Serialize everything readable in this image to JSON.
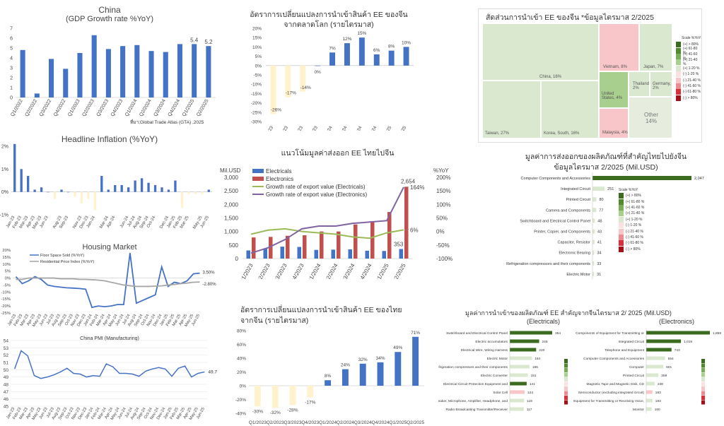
{
  "gdp": {
    "title": "China",
    "subtitle": "(GDP Growth rate %YoY)",
    "chart_data": {
      "type": "bar",
      "categories": [
        "Q1/2022",
        "Q2/2022",
        "Q3/2022",
        "Q4/2022",
        "Q1/2023",
        "Q2/2023",
        "Q3/2023",
        "Q4/2023",
        "Q1/2024",
        "Q2/2024",
        "Q3/2024",
        "Q4/2024",
        "Q1/2025",
        "Q2/2025"
      ],
      "values": [
        4.8,
        0.4,
        3.9,
        2.9,
        4.5,
        6.3,
        4.9,
        5.2,
        5.3,
        4.7,
        4.6,
        5.4,
        5.4,
        5.2
      ],
      "data_labels": [
        "",
        "",
        "",
        "",
        "",
        "",
        "",
        "",
        "",
        "",
        "",
        "",
        "5.4",
        "5.2"
      ],
      "ylim": [
        0,
        7
      ],
      "yticks": [
        "0",
        "1",
        "2",
        "3",
        "4",
        "5",
        "6",
        "7"
      ],
      "color": "#4472c4"
    }
  },
  "import_world": {
    "title_line1": "อัตราการเปลี่ยนแปลงการนำเข้าสินค้า EE ของจีน",
    "title_line2": "จากตลาดโลก (รายไตรมาส)",
    "source": "ที่มา;Global Trade Atlas (GTA) ,2025",
    "chart_data": {
      "type": "bar",
      "categories": [
        "Q1/2023",
        "Q2/2023",
        "Q3/2023",
        "Q4/2023",
        "Q1/2024",
        "Q2/2024",
        "Q3/2024",
        "Q4/2024",
        "Q1/2025",
        "Q2/2025"
      ],
      "values": [
        -26,
        -17,
        -14,
        0,
        7,
        12,
        15,
        6,
        8,
        10
      ],
      "data_labels": [
        "-26%",
        "-17%",
        "-14%",
        "0%",
        "7%",
        "12%",
        "15%",
        "6%",
        "8%",
        "10%"
      ],
      "ylim": [
        -30,
        20
      ],
      "yticks": [
        "-30%",
        "-25%",
        "-20%",
        "-15%",
        "-10%",
        "-5%",
        "0%",
        "5%",
        "10%",
        "15%",
        "20%"
      ],
      "pos_color": "#4472c4",
      "neg_color": "#fff2cc"
    }
  },
  "treemap": {
    "title": "สัดส่วนการนำเข้า EE ของจีน *ข้อมูลไตรมาส 2/2025",
    "cells": [
      {
        "label": "China, 16%",
        "color": "#dae8d0"
      },
      {
        "label": "Taiwan, 27%",
        "color": "#dae8d0"
      },
      {
        "label": "Korea, South, 16%",
        "color": "#dae8d0"
      },
      {
        "label": "Vietnam, 8%",
        "color": "#f8c6c9"
      },
      {
        "label": "Japan, 7%",
        "color": "#dae8d0"
      },
      {
        "label": "United States, 4%",
        "color": "#a9cf8e"
      },
      {
        "label": "Thailand, 2%",
        "color": "#dae8d0"
      },
      {
        "label": "Germany, 2%",
        "color": "#dae8d0"
      },
      {
        "label": "Malaysia, 4%",
        "color": "#f8c6c9"
      },
      {
        "label": "Other 14%",
        "color": "#e6eddf"
      }
    ],
    "scale_title": "Scale %YoY",
    "scale": [
      {
        "label": "(+) > 80%",
        "color": "#3a6b1f"
      },
      {
        "label": "(+) 61-80 %",
        "color": "#4f8a2c"
      },
      {
        "label": "(+) 41-60 %",
        "color": "#79ad5a"
      },
      {
        "label": "(+) 21-40 %",
        "color": "#a9cf8e"
      },
      {
        "label": "(+) 1-20 %",
        "color": "#dae8d0"
      },
      {
        "label": "(-) 1-20 %",
        "color": "#fde0e2"
      },
      {
        "label": "(-) 21-40 %",
        "color": "#f8c6c9"
      },
      {
        "label": "(-) 41-60 %",
        "color": "#ee8b90"
      },
      {
        "label": "(-) 61-80 %",
        "color": "#d9313b"
      },
      {
        "label": "(-) > 80%",
        "color": "#a50f15"
      }
    ]
  },
  "inflation": {
    "title": "Headline Inflation (%YoY)",
    "chart_data": {
      "type": "bar",
      "categories": [
        "Jan-23",
        "Feb-23",
        "Mar-23",
        "Apr-23",
        "May-23",
        "Jun-23",
        "Jul-23",
        "Aug-23",
        "Sep-23",
        "Oct-23",
        "Nov-23",
        "Dec-23",
        "Jan-24",
        "Feb-24",
        "Mar-24",
        "Apr-24",
        "May-24",
        "Jun-24",
        "Jul-24",
        "Aug-24",
        "Sep-24",
        "Oct-24",
        "Nov-24",
        "Dec-24",
        "Jan-25",
        "Feb-25",
        "Mar-25",
        "Apr-25",
        "May-25",
        "Jun-25"
      ],
      "values": [
        2.1,
        1.0,
        0.7,
        0.1,
        0.2,
        0.0,
        -0.3,
        0.1,
        0.0,
        -0.2,
        -0.5,
        -0.3,
        -0.8,
        0.7,
        0.1,
        0.3,
        0.3,
        0.2,
        0.5,
        0.6,
        0.4,
        0.3,
        0.2,
        0.1,
        0.5,
        -0.7,
        -0.1,
        -0.1,
        -0.1,
        0.1
      ],
      "xtick_labels": [
        "Jan-23",
        "Feb-23",
        "Mar-23",
        "Apr-23",
        "May-23",
        "Jun-23",
        "",
        "Aug-23",
        "Sep-23",
        "",
        "Nov-23",
        "Dec-23",
        "Jan-24",
        "",
        "Mar-24",
        "Apr-24",
        "",
        "Jun-24",
        "Jul-24",
        "Aug-24",
        "Sep-24",
        "Oct-24",
        "",
        "Dec-24",
        "Jan-25",
        "Feb-25",
        "Mar-25",
        "",
        "May-25",
        "Jun-25"
      ],
      "ylim": [
        -1,
        2
      ],
      "yticks": [
        "-1%",
        "0%",
        "1%",
        "2%"
      ],
      "pos_color": "#4472c4",
      "neg_color": "#fff2cc"
    }
  },
  "export_trend": {
    "title": "แนวโน้มมูลค่าส่งออก EE ไทยไปจีน",
    "left_unit": "Mil.USD",
    "right_unit": "%YoY",
    "chart_data": {
      "type": "bar",
      "categories": [
        "Q1/2023",
        "Q2/2023",
        "Q3/2023",
        "Q4/2023",
        "Q1/2024",
        "Q2/2024",
        "Q3/2024",
        "Q4/2024",
        "Q1/2025",
        "Q2/2025"
      ],
      "series": [
        {
          "name": "Electricals",
          "values": [
            300,
            380,
            440,
            430,
            320,
            330,
            340,
            290,
            280,
            353
          ],
          "color": "#4472c4"
        },
        {
          "name": "Electronics",
          "values": [
            780,
            800,
            840,
            860,
            1000,
            1000,
            1260,
            1350,
            1720,
            2654
          ],
          "color": "#c0504d"
        },
        {
          "name": "Growth rate of export value (Electricals)",
          "values": [
            -10,
            5,
            10,
            0,
            -5,
            -10,
            -20,
            -25,
            -5,
            6
          ],
          "color": "#9bbb59"
        },
        {
          "name": "Growth rate of export value (Electronics)",
          "values": [
            -80,
            -60,
            -30,
            10,
            20,
            20,
            30,
            35,
            40,
            164
          ],
          "color": "#8064a2"
        }
      ],
      "data_labels": [
        "2,654",
        "353",
        "164%",
        "6%"
      ],
      "ylim": [
        0,
        3000
      ],
      "yticks": [
        "0",
        "500",
        "1,000",
        "1,500",
        "2,000",
        "2,500",
        "3,000"
      ],
      "y2lim": [
        -100,
        200
      ],
      "y2ticks": [
        "-100%",
        "-50%",
        "0%",
        "50%",
        "100%",
        "150%",
        "200%"
      ]
    }
  },
  "export_products": {
    "title_line1": "มูลค่าการส่งออกของผลิตภัณฑ์ที่สำคัญไทยไปยังจีน",
    "title_line2": "ข้อมูลไตรมาส 2/2025 (Mil.USD)",
    "chart_data": {
      "type": "bar",
      "categories": [
        "Computer Components and Accessories",
        "Integrated Circuit",
        "Printed Circuit",
        "Camera and Components",
        "Switchboard and Electrical Control Panel",
        "Printer, Copier, and Components",
        "Capacitor, Resistor",
        "Electronic Bearing",
        "Refrigeration compressors and their components",
        "Electric Motor"
      ],
      "values": [
        2047,
        251,
        80,
        77,
        48,
        43,
        41,
        34,
        33,
        31
      ],
      "data_labels": [
        "2,047",
        "251",
        "80",
        "77",
        "48",
        "43",
        "41",
        "34",
        "33",
        "31"
      ],
      "colors": [
        "#3a6b1f",
        "#dae8d0",
        "#dae8d0",
        "#dae8d0",
        "#dae8d0",
        "#dae8d0",
        "#dae8d0",
        "#dae8d0",
        "#dae8d0",
        "#dae8d0"
      ]
    },
    "scale_title": "Scale %YoY"
  },
  "housing": {
    "title": "Housing Market",
    "chart_data": {
      "type": "line",
      "x": [
        "Jan-23",
        "Feb-23",
        "Mar-23",
        "Apr-23",
        "May-23",
        "Jun-23",
        "Jul-23",
        "Aug-23",
        "Sep-23",
        "Oct-23",
        "Nov-23",
        "Dec-23",
        "Jan-24",
        "Feb-24",
        "Mar-24",
        "Apr-24",
        "May-24",
        "Jun-24",
        "Jul-24",
        "Aug-24",
        "Sep-24",
        "Oct-24",
        "Nov-24",
        "Dec-24",
        "Jan-25",
        "Feb-25",
        "Mar-25",
        "Apr-25",
        "May-25",
        "Jun-25"
      ],
      "series": [
        {
          "name": "Floor Space Sold (%YoY)",
          "values": [
            1,
            -4,
            -2,
            1,
            -1,
            -5,
            -6,
            -6.5,
            -7,
            -7.2,
            -7.5,
            -8,
            -21,
            -20,
            -20.5,
            -20,
            -19,
            -19,
            18,
            -18,
            -16,
            -14,
            -12,
            8,
            -6,
            -3,
            -4,
            -2,
            3,
            3.5
          ],
          "color": "#4472c4"
        },
        {
          "name": "Residential Price Index (%YoY)",
          "values": [
            -1,
            -1,
            0,
            0,
            0,
            0,
            0,
            -0.5,
            -0.5,
            -0.5,
            -1,
            -1,
            -1.2,
            -1.5,
            -2,
            -3,
            -4,
            -5,
            -5.5,
            -6,
            -6,
            -6,
            -5.8,
            -5.6,
            -5,
            -4.6,
            -4,
            -3.6,
            -3,
            -2.8
          ],
          "color": "#a6a6a6"
        }
      ],
      "data_labels": [
        "3.50%",
        "-2.80%"
      ],
      "ylim": [
        -25,
        20
      ],
      "yticks": [
        "-25%",
        "-20%",
        "-15%",
        "-10%",
        "-5%",
        "0%",
        "5%",
        "10%",
        "15%",
        "20%"
      ],
      "xtick_labels": [
        "Jan-23",
        "Feb-23",
        "Mar-23",
        "Apr-23",
        "May-23",
        "Jun-23",
        "Jul-23",
        "Aug-23",
        "Sep-23",
        "Oct-23",
        "Nov-23",
        "Dec-23",
        "Jan-24",
        "Feb-24",
        "Mar-24",
        "Apr-24",
        "May-24",
        "Jun-24",
        "Jul-24",
        "Aug-24",
        "Sep-24",
        "Oct-24",
        "Nov-24",
        "Dec-24",
        "Jan-25",
        "Feb-25",
        "Mar-25",
        "Apr-25",
        "May-25",
        "Jun-25"
      ]
    }
  },
  "import_thai": {
    "title_line1": "อัตราการเปลี่ยนแปลงการนำเข้าสินค้า EE ของไทย",
    "title_line2": "จากจีน (รายไตรมาส)",
    "chart_data": {
      "type": "bar",
      "categories": [
        "Q1/2023",
        "Q2/2023",
        "Q3/2023",
        "Q4/2023",
        "Q1/2024",
        "Q2/2024",
        "Q3/2024",
        "Q4/2024",
        "Q1/2025",
        "Q2/2025"
      ],
      "values": [
        -30,
        -32,
        -28,
        -17,
        8,
        24,
        32,
        34,
        49,
        71
      ],
      "data_labels": [
        "-30%",
        "-32%",
        "-28%",
        "-17%",
        "8%",
        "24%",
        "32%",
        "34%",
        "49%",
        "71%"
      ],
      "ylim": [
        -40,
        80
      ],
      "yticks": [
        "-40%",
        "-20%",
        "0%",
        "20%",
        "40%",
        "60%",
        "80%"
      ],
      "pos_color": "#4472c4",
      "neg_color": "#fff2cc"
    }
  },
  "pmi": {
    "title": "China PMI (Manufacturing)",
    "chart_data": {
      "type": "line",
      "x": [
        "Jan-23",
        "Feb-23",
        "Mar-23",
        "Apr-23",
        "May-23",
        "Jun-23",
        "Jul-23",
        "Aug-23",
        "Sep-23",
        "Oct-23",
        "Nov-23",
        "Dec-23",
        "Jan-24",
        "Feb-24",
        "Mar-24",
        "Apr-24",
        "May-24",
        "Jun-24",
        "Jul-24",
        "Aug-24",
        "Sep-24",
        "Oct-24",
        "Nov-24",
        "Dec-24",
        "Jan-25",
        "Feb-25",
        "Mar-25",
        "Apr-25",
        "May-25",
        "Jun-25"
      ],
      "values": [
        50.1,
        52.6,
        51.9,
        49.2,
        48.8,
        49.0,
        49.3,
        49.7,
        50.2,
        49.5,
        49.4,
        49.0,
        49.2,
        49.1,
        50.8,
        50.4,
        49.5,
        49.5,
        49.4,
        49.1,
        49.8,
        50.1,
        50.3,
        50.1,
        49.1,
        50.2,
        50.5,
        49.0,
        49.5,
        49.7
      ],
      "data_labels": [
        "49.7"
      ],
      "ylim": [
        45,
        54
      ],
      "yticks": [
        "45",
        "46",
        "47",
        "48",
        "49",
        "50",
        "51",
        "52",
        "53",
        "54"
      ],
      "xtick_labels": [
        "Jan-23",
        "Feb-23",
        "Mar-23",
        "Apr-23",
        "May-23",
        "Jun-23",
        "Jul-23",
        "Aug-23",
        "Sep-23",
        "Oct-23",
        "Nov-23",
        "Dec-23",
        "Jan-24",
        "Feb-24",
        "Mar-24",
        "Apr-24",
        "May-24",
        "Jun-24",
        "Jul-24",
        "Aug-24",
        "Sep-24",
        "Oct-24",
        "Nov-24",
        "Dec-24",
        "Jan-25",
        "Feb-25",
        "Mar-25",
        "Apr-25",
        "May-25",
        "Jun-25"
      ],
      "color": "#4472c4"
    }
  },
  "import_products": {
    "title": "มูลค่าการนำเข้าของผลิตภัณฑ์ EE สำคัญจากจีนไตรมาส 2/ 2025 (Mil.USD)",
    "left_sub": "(Electricals)",
    "right_sub": "(Electronics)",
    "electricals": {
      "type": "bar",
      "categories": [
        "Switchboard and Electrical Control Panel",
        "Electric accumulators",
        "Electrical Wire, Wiring Harness",
        "Electric Motor",
        "Refrigeration compressors and their components",
        "Electric Converter",
        "Electrical Circuit Protection Equipment and",
        "Solar Cell",
        "Speaker, Microphone, Amplifier, Headphone, and",
        "Radio Broadcasting Transmitter/Receiver"
      ],
      "values": [
        354,
        245,
        220,
        184,
        165,
        151,
        141,
        124,
        119,
        117
      ],
      "data_labels": [
        "354",
        "245",
        "220",
        "184",
        "165",
        "151",
        "141",
        "124",
        "119",
        "117"
      ],
      "colors": [
        "#3a6b1f",
        "#3a6b1f",
        "#3a6b1f",
        "#dae8d0",
        "#dae8d0",
        "#dae8d0",
        "#3a6b1f",
        "#f8c6c9",
        "#dae8d0",
        "#dae8d0"
      ]
    },
    "electronics": {
      "type": "bar",
      "categories": [
        "Components of Equipment for Transmitting or",
        "Integrated Circuit",
        "Telephone and Equipment",
        "Computer Components and Accessories",
        "Computer",
        "Printed Circuit",
        "Magnetic Tape and Magnetic Disk, CD",
        "Semiconductor (excluding integrated circuit)",
        "Equipment for Transmitting or Receiving Voice,",
        "Monitor"
      ],
      "values": [
        1869,
        1019,
        743,
        554,
        501,
        359,
        248,
        183,
        183,
        160
      ],
      "data_labels": [
        "1,869",
        "1,019",
        "743",
        "554",
        "501",
        "359",
        "248",
        "183",
        "183",
        "160"
      ],
      "colors": [
        "#3a6b1f",
        "#3a6b1f",
        "#3a6b1f",
        "#dae8d0",
        "#dae8d0",
        "#dae8d0",
        "#dae8d0",
        "#f8c6c9",
        "#dae8d0",
        "#dae8d0"
      ]
    }
  }
}
